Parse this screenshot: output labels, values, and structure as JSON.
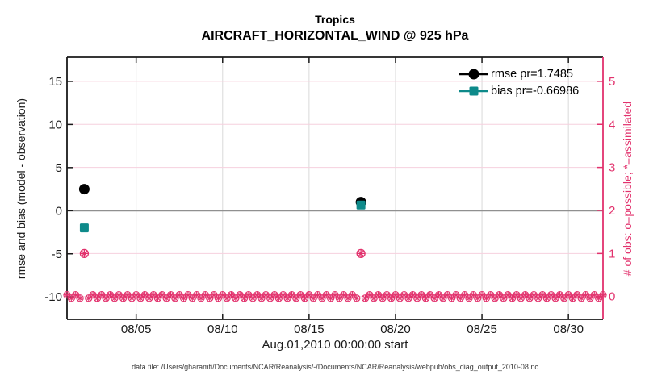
{
  "figure": {
    "title_line1": "Tropics",
    "title_line2": "AIRCRAFT_HORIZONTAL_WIND @ 925 hPa",
    "xlabel": "Aug.01,2010 00:00:00 start",
    "ylabel_left": "rmse and bias (model - observation)",
    "ylabel_right": "# of obs: o=possible; *=assimilated",
    "caption": "data file: /Users/gharamti/Documents/NCAR/Reanalysis/-/Documents/NCAR/Reanalysis/webpub/obs_diag_output_2010-08.nc"
  },
  "legend": {
    "items": [
      {
        "name": "rmse",
        "label": "rmse pr=1.7485",
        "color": "#000000",
        "marker": "circle"
      },
      {
        "name": "bias",
        "label": "bias pr=-0.66986",
        "color": "#0e8a8a",
        "marker": "square"
      }
    ]
  },
  "chart_data": {
    "type": "line",
    "title": "Tropics",
    "subtitle": "AIRCRAFT_HORIZONTAL_WIND @ 925 hPa",
    "xlabel": "Aug.01,2010 00:00:00 start",
    "grid": true,
    "x_axis": {
      "start_day": 0,
      "end_day": 31,
      "start_label": "Aug.01,2010 00:00:00",
      "ticks": [
        {
          "day": 4,
          "label": "08/05"
        },
        {
          "day": 9,
          "label": "08/10"
        },
        {
          "day": 14,
          "label": "08/15"
        },
        {
          "day": 19,
          "label": "08/20"
        },
        {
          "day": 24,
          "label": "08/25"
        },
        {
          "day": 29,
          "label": "08/30"
        }
      ]
    },
    "left_axis": {
      "label": "rmse and bias (model - observation)",
      "color": "#1a1a1a",
      "ticks": [
        15,
        10,
        5,
        0,
        -5,
        -10
      ],
      "min": -12.6,
      "max": 17.8,
      "zero_line": 0
    },
    "right_axis": {
      "label": "# of obs: o=possible; *=assimilated",
      "color": "#e2326d",
      "ticks": [
        5,
        4,
        3,
        2,
        1,
        0
      ],
      "min": -0.53,
      "max": 5.56
    },
    "series": [
      {
        "name": "rmse",
        "legend": "rmse pr=1.7485",
        "axis": "left",
        "marker": "circle",
        "color": "#000000",
        "points": [
          {
            "day": 1,
            "value": 2.5
          },
          {
            "day": 17,
            "value": 1.0
          }
        ]
      },
      {
        "name": "bias",
        "legend": "bias pr=-0.66986",
        "axis": "left",
        "marker": "square",
        "color": "#0e8a8a",
        "points": [
          {
            "day": 1,
            "value": -2.0
          },
          {
            "day": 17,
            "value": 0.66
          }
        ]
      }
    ],
    "obs_counts": {
      "axis": "right",
      "marker": "circle-asterisk",
      "color": "#e2326d",
      "bins_per_day": 4,
      "baseline_value": 0,
      "nonzero": [
        {
          "day": 1,
          "possible": 1,
          "assimilated": 1
        },
        {
          "day": 17,
          "possible": 1,
          "assimilated": 1
        }
      ]
    },
    "grid_colors": {
      "vertical": "#d9d9d9",
      "horizontal": "#f6d0de",
      "zero_line": "#909090"
    }
  }
}
